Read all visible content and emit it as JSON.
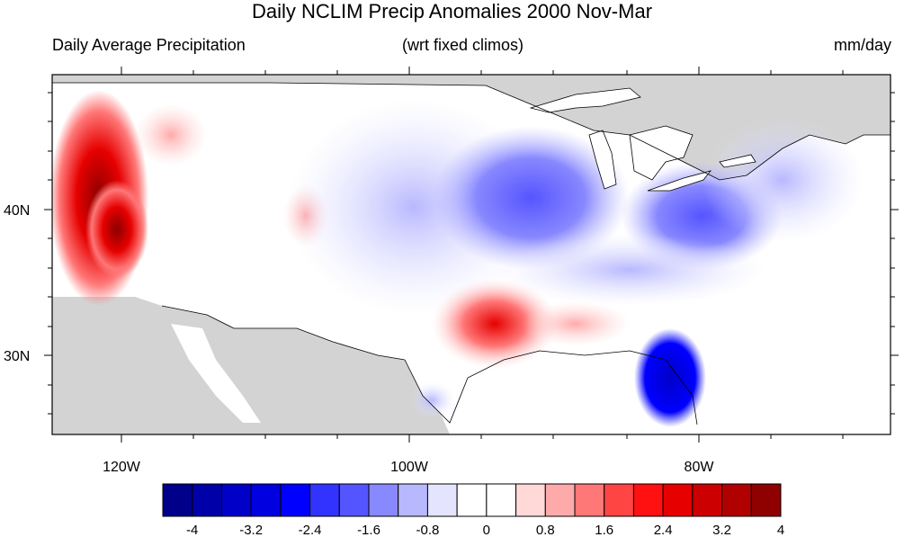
{
  "title": "Daily NCLIM Precip Anomalies 2000 Nov-Mar",
  "subtitle_left": "Daily Average Precipitation",
  "subtitle_center": "(wrt fixed climos)",
  "subtitle_right": "mm/day",
  "axes": {
    "lon_ticks": [
      "120W",
      "100W",
      "80W"
    ],
    "lat_ticks": [
      "40N",
      "30N"
    ]
  },
  "colorbar": {
    "labels": [
      "-4",
      "-3.2",
      "-2.4",
      "-1.6",
      "-0.8",
      "0",
      "0.8",
      "1.6",
      "2.4",
      "3.2",
      "4"
    ],
    "colors": [
      "#00008b",
      "#0000a8",
      "#0000c8",
      "#0000e0",
      "#0000ff",
      "#3333ff",
      "#5555ff",
      "#8888ff",
      "#b8b8ff",
      "#e4e4ff",
      "#ffffff",
      "#ffffff",
      "#ffd8d8",
      "#ffaaaa",
      "#ff7777",
      "#ff4444",
      "#ff1111",
      "#e60000",
      "#cc0000",
      "#b00000",
      "#8f0000"
    ]
  },
  "colors": {
    "land_outside": "#d3d3d3",
    "dry_max": "#8b0000",
    "wet_max": "#0000cd"
  }
}
